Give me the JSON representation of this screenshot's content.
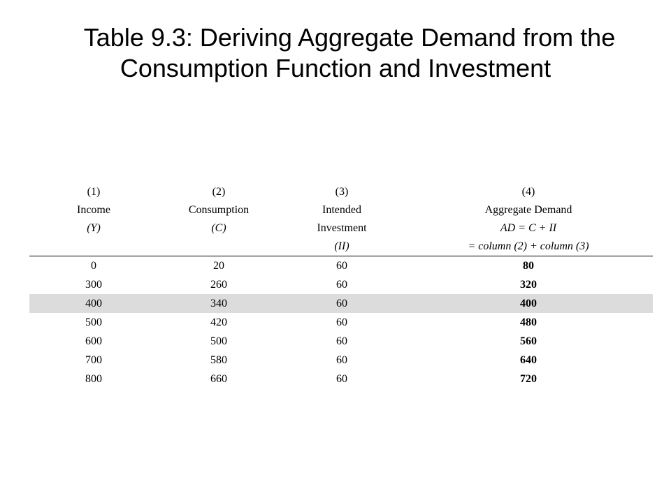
{
  "title": {
    "line1": "Table 9.3: Deriving Aggregate Demand from the",
    "line2": "Consumption Function and Investment"
  },
  "columns": [
    {
      "num": "(1)",
      "label": "Income",
      "symbol": "(Y)"
    },
    {
      "num": "(2)",
      "label": "Consumption",
      "symbol": "(C)"
    },
    {
      "num": "(3)",
      "label": "Intended",
      "label2": "Investment",
      "symbol": "(II)"
    },
    {
      "num": "(4)",
      "label": "Aggregate Demand",
      "formula": "AD = C + II",
      "formula2": "= column (2) + column (3)"
    }
  ],
  "rows": [
    [
      "0",
      "20",
      "60",
      "80"
    ],
    [
      "300",
      "260",
      "60",
      "320"
    ],
    [
      "400",
      "340",
      "60",
      "400"
    ],
    [
      "500",
      "420",
      "60",
      "480"
    ],
    [
      "600",
      "500",
      "60",
      "560"
    ],
    [
      "700",
      "580",
      "60",
      "640"
    ],
    [
      "800",
      "660",
      "60",
      "720"
    ]
  ],
  "highlight_color": "#dcdcdc"
}
